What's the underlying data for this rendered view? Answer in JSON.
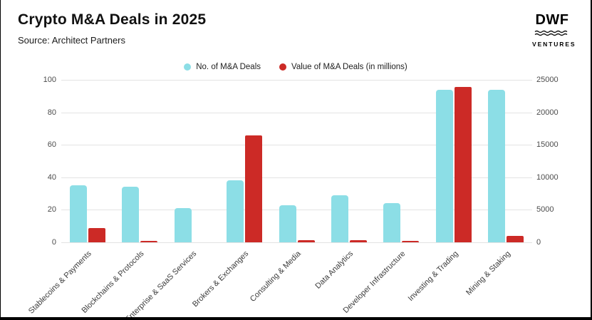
{
  "page": {
    "title": "Crypto M&A Deals in 2025",
    "source": "Source: Architect Partners"
  },
  "logo": {
    "name": "DWF",
    "subtitle": "VENTURES"
  },
  "chart_data": {
    "type": "bar",
    "title": "Crypto M&A Deals in 2025",
    "categories": [
      "Stablecoins & Payments",
      "Blockchains & Protocols",
      "Enterprise & SaaS Services",
      "Brokers & Exchanges",
      "Consulting & Media",
      "Data Analytics",
      "Developer Infrastructure",
      "Investing & Trading",
      "Mining & Staking"
    ],
    "series": [
      {
        "name": "No. of M&A Deals",
        "axis": "left",
        "color": "#8CDEE6",
        "values": [
          35,
          34,
          21,
          38,
          23,
          29,
          24,
          94,
          94
        ]
      },
      {
        "name": "Value of M&A Deals (in millions)",
        "axis": "right",
        "color": "#CC2A26",
        "values": [
          2200,
          120,
          0,
          16500,
          350,
          350,
          250,
          23900,
          1000
        ]
      }
    ],
    "left_axis": {
      "ticks": [
        0,
        20,
        40,
        60,
        80,
        100
      ],
      "max": 100
    },
    "right_axis": {
      "ticks": [
        0,
        5000,
        10000,
        15000,
        20000,
        25000
      ],
      "max": 25000
    },
    "grid": true,
    "legend_position": "top"
  }
}
